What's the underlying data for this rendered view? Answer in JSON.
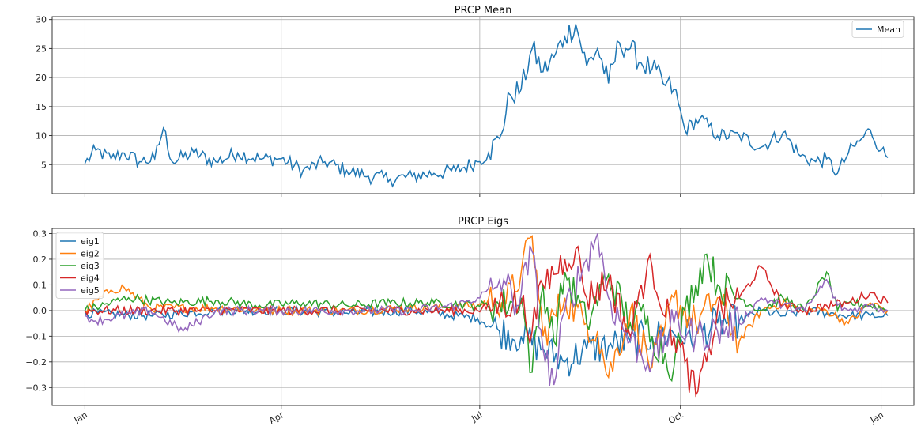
{
  "chart_data": [
    {
      "type": "line",
      "title": "PRCP Mean",
      "xlabel": "",
      "ylabel": "",
      "x_unit": "day of year",
      "xlim": [
        -15,
        380
      ],
      "ylim": [
        0,
        30.5
      ],
      "yticks": [
        5,
        10,
        15,
        20,
        25,
        30
      ],
      "xticks": [
        0,
        90,
        181,
        273,
        365
      ],
      "xticklabels": [
        "Jan",
        "Apr",
        "Jul",
        "Oct",
        "Jan"
      ],
      "grid": true,
      "legend": "top-right",
      "series": [
        {
          "name": "Mean",
          "color": "#1f77b4",
          "keypoints": [
            [
              0,
              5.2
            ],
            [
              5,
              7.5
            ],
            [
              12,
              6.0
            ],
            [
              18,
              7.0
            ],
            [
              25,
              5.5
            ],
            [
              32,
              6.0
            ],
            [
              36,
              11.3
            ],
            [
              40,
              5.5
            ],
            [
              50,
              7.0
            ],
            [
              60,
              5.5
            ],
            [
              70,
              7.0
            ],
            [
              80,
              6.0
            ],
            [
              90,
              6.0
            ],
            [
              100,
              4.0
            ],
            [
              110,
              5.5
            ],
            [
              120,
              4.0
            ],
            [
              130,
              3.0
            ],
            [
              140,
              2.5
            ],
            [
              150,
              3.0
            ],
            [
              160,
              3.5
            ],
            [
              170,
              4.0
            ],
            [
              180,
              5.5
            ],
            [
              185,
              7.0
            ],
            [
              190,
              9.5
            ],
            [
              195,
              17.0
            ],
            [
              200,
              18.0
            ],
            [
              205,
              25.0
            ],
            [
              210,
              21.0
            ],
            [
              215,
              23.5
            ],
            [
              220,
              27.0
            ],
            [
              225,
              29.2
            ],
            [
              230,
              22.0
            ],
            [
              235,
              25.0
            ],
            [
              240,
              19.0
            ],
            [
              245,
              26.0
            ],
            [
              250,
              25.0
            ],
            [
              255,
              22.5
            ],
            [
              260,
              21.5
            ],
            [
              265,
              19.0
            ],
            [
              270,
              18.0
            ],
            [
              275,
              11.0
            ],
            [
              282,
              13.0
            ],
            [
              290,
              10.0
            ],
            [
              300,
              10.0
            ],
            [
              310,
              8.0
            ],
            [
              320,
              10.5
            ],
            [
              328,
              6.5
            ],
            [
              335,
              5.5
            ],
            [
              340,
              6.0
            ],
            [
              345,
              3.5
            ],
            [
              350,
              7.0
            ],
            [
              355,
              9.0
            ],
            [
              360,
              11.0
            ],
            [
              365,
              7.5
            ],
            [
              368,
              6.2
            ]
          ]
        }
      ]
    },
    {
      "type": "line",
      "title": "PRCP Eigs",
      "xlabel": "",
      "ylabel": "",
      "x_unit": "day of year",
      "xlim": [
        -15,
        380
      ],
      "ylim": [
        -0.37,
        0.32
      ],
      "yticks": [
        -0.3,
        -0.2,
        -0.1,
        0.0,
        0.1,
        0.2,
        0.3
      ],
      "yticklabels": [
        "−0.3",
        "−0.2",
        "−0.1",
        "0.0",
        "0.1",
        "0.2",
        "0.3"
      ],
      "xticks": [
        0,
        90,
        181,
        273,
        365
      ],
      "xticklabels": [
        "Jan",
        "Apr",
        "Jul",
        "Oct",
        "Jan"
      ],
      "grid": true,
      "legend": "top-left",
      "series": [
        {
          "name": "eig1",
          "color": "#1f77b4",
          "keypoints": [
            [
              0,
              -0.01
            ],
            [
              30,
              -0.02
            ],
            [
              60,
              0.0
            ],
            [
              90,
              0.0
            ],
            [
              120,
              -0.01
            ],
            [
              150,
              0.0
            ],
            [
              180,
              -0.03
            ],
            [
              190,
              -0.08
            ],
            [
              200,
              -0.1
            ],
            [
              210,
              -0.15
            ],
            [
              220,
              -0.2
            ],
            [
              230,
              -0.15
            ],
            [
              240,
              -0.14
            ],
            [
              250,
              -0.12
            ],
            [
              260,
              -0.1
            ],
            [
              270,
              -0.09
            ],
            [
              280,
              -0.1
            ],
            [
              290,
              -0.05
            ],
            [
              300,
              -0.04
            ],
            [
              310,
              0.0
            ],
            [
              320,
              -0.02
            ],
            [
              330,
              0.0
            ],
            [
              340,
              -0.01
            ],
            [
              350,
              -0.02
            ],
            [
              360,
              -0.02
            ],
            [
              368,
              -0.02
            ]
          ]
        },
        {
          "name": "eig2",
          "color": "#ff7f0e",
          "keypoints": [
            [
              0,
              0.0
            ],
            [
              12,
              0.08
            ],
            [
              18,
              0.09
            ],
            [
              30,
              0.01
            ],
            [
              60,
              0.01
            ],
            [
              90,
              0.0
            ],
            [
              120,
              0.0
            ],
            [
              150,
              0.01
            ],
            [
              180,
              0.02
            ],
            [
              188,
              0.05
            ],
            [
              193,
              0.03
            ],
            [
              200,
              0.15
            ],
            [
              205,
              0.29
            ],
            [
              210,
              -0.1
            ],
            [
              220,
              0.05
            ],
            [
              230,
              -0.05
            ],
            [
              235,
              -0.08
            ],
            [
              240,
              -0.26
            ],
            [
              250,
              0.0
            ],
            [
              260,
              -0.22
            ],
            [
              265,
              -0.1
            ],
            [
              270,
              0.05
            ],
            [
              280,
              -0.05
            ],
            [
              290,
              0.05
            ],
            [
              300,
              -0.12
            ],
            [
              310,
              0.0
            ],
            [
              320,
              0.03
            ],
            [
              330,
              0.0
            ],
            [
              340,
              0.0
            ],
            [
              350,
              -0.05
            ],
            [
              360,
              0.03
            ],
            [
              368,
              0.0
            ]
          ]
        },
        {
          "name": "eig3",
          "color": "#2ca02c",
          "keypoints": [
            [
              0,
              0.0
            ],
            [
              20,
              0.05
            ],
            [
              40,
              0.03
            ],
            [
              60,
              0.04
            ],
            [
              80,
              0.02
            ],
            [
              100,
              0.03
            ],
            [
              120,
              0.02
            ],
            [
              140,
              0.03
            ],
            [
              160,
              0.03
            ],
            [
              180,
              0.02
            ],
            [
              190,
              0.02
            ],
            [
              200,
              0.05
            ],
            [
              205,
              -0.24
            ],
            [
              210,
              0.1
            ],
            [
              215,
              -0.12
            ],
            [
              220,
              0.15
            ],
            [
              230,
              -0.05
            ],
            [
              240,
              0.14
            ],
            [
              250,
              -0.05
            ],
            [
              255,
              0.0
            ],
            [
              260,
              -0.1
            ],
            [
              270,
              -0.22
            ],
            [
              275,
              0.0
            ],
            [
              280,
              0.1
            ],
            [
              285,
              0.22
            ],
            [
              290,
              0.1
            ],
            [
              300,
              0.05
            ],
            [
              310,
              0.0
            ],
            [
              320,
              0.05
            ],
            [
              330,
              0.0
            ],
            [
              340,
              0.15
            ],
            [
              345,
              0.0
            ],
            [
              350,
              0.03
            ],
            [
              360,
              0.02
            ],
            [
              368,
              0.0
            ]
          ]
        },
        {
          "name": "eig4",
          "color": "#d62728",
          "keypoints": [
            [
              0,
              0.0
            ],
            [
              30,
              0.0
            ],
            [
              60,
              0.0
            ],
            [
              90,
              0.0
            ],
            [
              120,
              0.0
            ],
            [
              150,
              0.0
            ],
            [
              180,
              0.0
            ],
            [
              190,
              0.03
            ],
            [
              200,
              0.03
            ],
            [
              205,
              -0.08
            ],
            [
              210,
              0.1
            ],
            [
              220,
              0.2
            ],
            [
              225,
              0.24
            ],
            [
              230,
              0.05
            ],
            [
              240,
              0.12
            ],
            [
              250,
              -0.1
            ],
            [
              255,
              0.1
            ],
            [
              260,
              0.17
            ],
            [
              270,
              -0.1
            ],
            [
              275,
              -0.2
            ],
            [
              280,
              -0.33
            ],
            [
              285,
              -0.2
            ],
            [
              290,
              0.0
            ],
            [
              300,
              0.05
            ],
            [
              310,
              0.17
            ],
            [
              320,
              0.02
            ],
            [
              330,
              0.0
            ],
            [
              340,
              0.02
            ],
            [
              350,
              0.03
            ],
            [
              360,
              0.07
            ],
            [
              368,
              0.03
            ]
          ]
        },
        {
          "name": "eig5",
          "color": "#9467bd",
          "keypoints": [
            [
              0,
              -0.02
            ],
            [
              5,
              -0.04
            ],
            [
              30,
              0.0
            ],
            [
              45,
              -0.08
            ],
            [
              60,
              0.0
            ],
            [
              90,
              0.0
            ],
            [
              120,
              0.0
            ],
            [
              150,
              0.0
            ],
            [
              170,
              0.02
            ],
            [
              180,
              0.05
            ],
            [
              188,
              0.09
            ],
            [
              192,
              0.12
            ],
            [
              198,
              0.02
            ],
            [
              205,
              0.23
            ],
            [
              210,
              -0.15
            ],
            [
              215,
              -0.29
            ],
            [
              220,
              0.0
            ],
            [
              230,
              0.2
            ],
            [
              235,
              0.3
            ],
            [
              240,
              0.05
            ],
            [
              250,
              -0.12
            ],
            [
              260,
              -0.2
            ],
            [
              270,
              -0.05
            ],
            [
              280,
              -0.1
            ],
            [
              290,
              -0.08
            ],
            [
              300,
              -0.05
            ],
            [
              310,
              0.05
            ],
            [
              320,
              0.02
            ],
            [
              330,
              0.0
            ],
            [
              340,
              0.12
            ],
            [
              345,
              0.02
            ],
            [
              350,
              0.0
            ],
            [
              360,
              0.02
            ],
            [
              368,
              0.0
            ]
          ]
        }
      ]
    }
  ]
}
